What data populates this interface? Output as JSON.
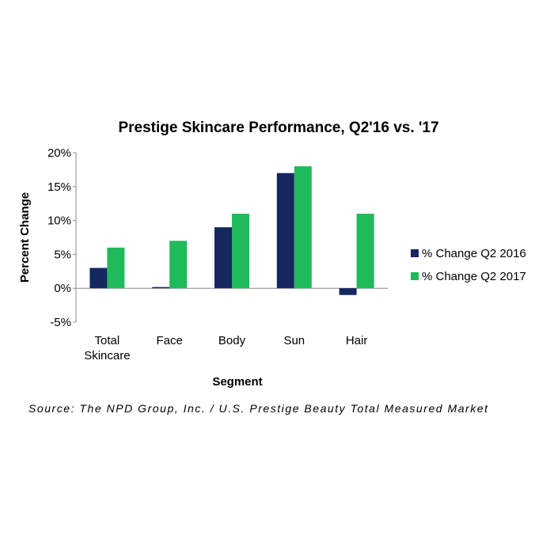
{
  "chart_data": {
    "type": "bar",
    "title": "Prestige Skincare Performance, Q2'16 vs. '17",
    "xlabel": "Segment",
    "ylabel": "Percent Change",
    "categories": [
      [
        "Total",
        "Skincare"
      ],
      [
        "Face"
      ],
      [
        "Body"
      ],
      [
        "Sun"
      ],
      [
        "Hair"
      ]
    ],
    "series": [
      {
        "name": "% Change Q2 2016",
        "values": [
          3,
          0,
          9,
          17,
          -1
        ],
        "color": "#14285f"
      },
      {
        "name": "% Change Q2 2017",
        "values": [
          6,
          7,
          11,
          18,
          11
        ],
        "color": "#1fba5a"
      }
    ],
    "ylim": [
      -5,
      20
    ],
    "yticks": [
      -5,
      0,
      5,
      10,
      15,
      20
    ],
    "ytick_labels": [
      "-5%",
      "0%",
      "5%",
      "10%",
      "15%",
      "20%"
    ],
    "grid": false,
    "legend_position": "right"
  },
  "source": "Source: The NPD Group, Inc. / U.S. Prestige Beauty Total Measured Market"
}
